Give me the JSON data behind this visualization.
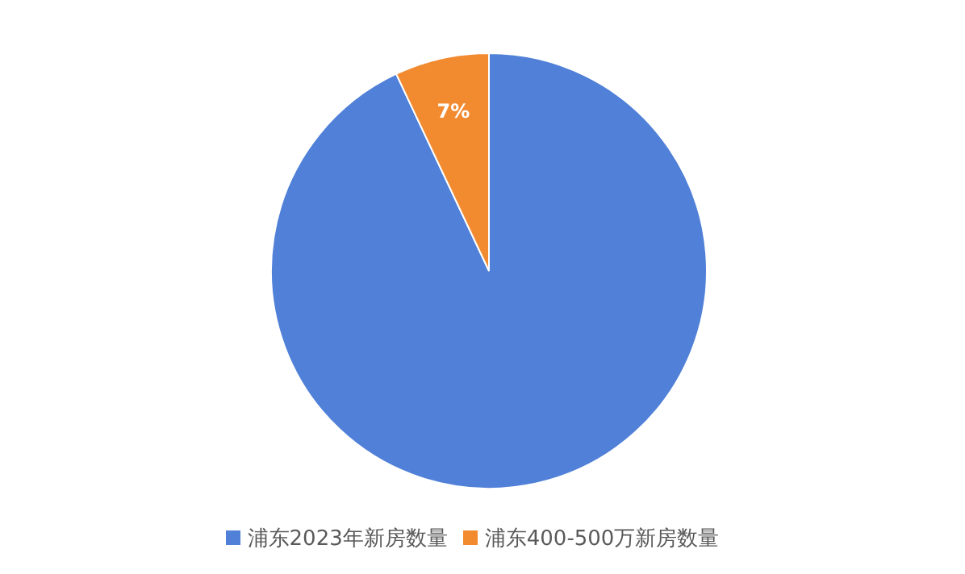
{
  "chart_data": {
    "type": "pie",
    "categories": [
      "浦东2023年新房数量",
      "浦东400-500万新房数量"
    ],
    "values": [
      93,
      7
    ],
    "colors": [
      "#5080d8",
      "#f28a30"
    ],
    "value_labels": [
      null,
      "7%"
    ],
    "legend": "bottom"
  }
}
